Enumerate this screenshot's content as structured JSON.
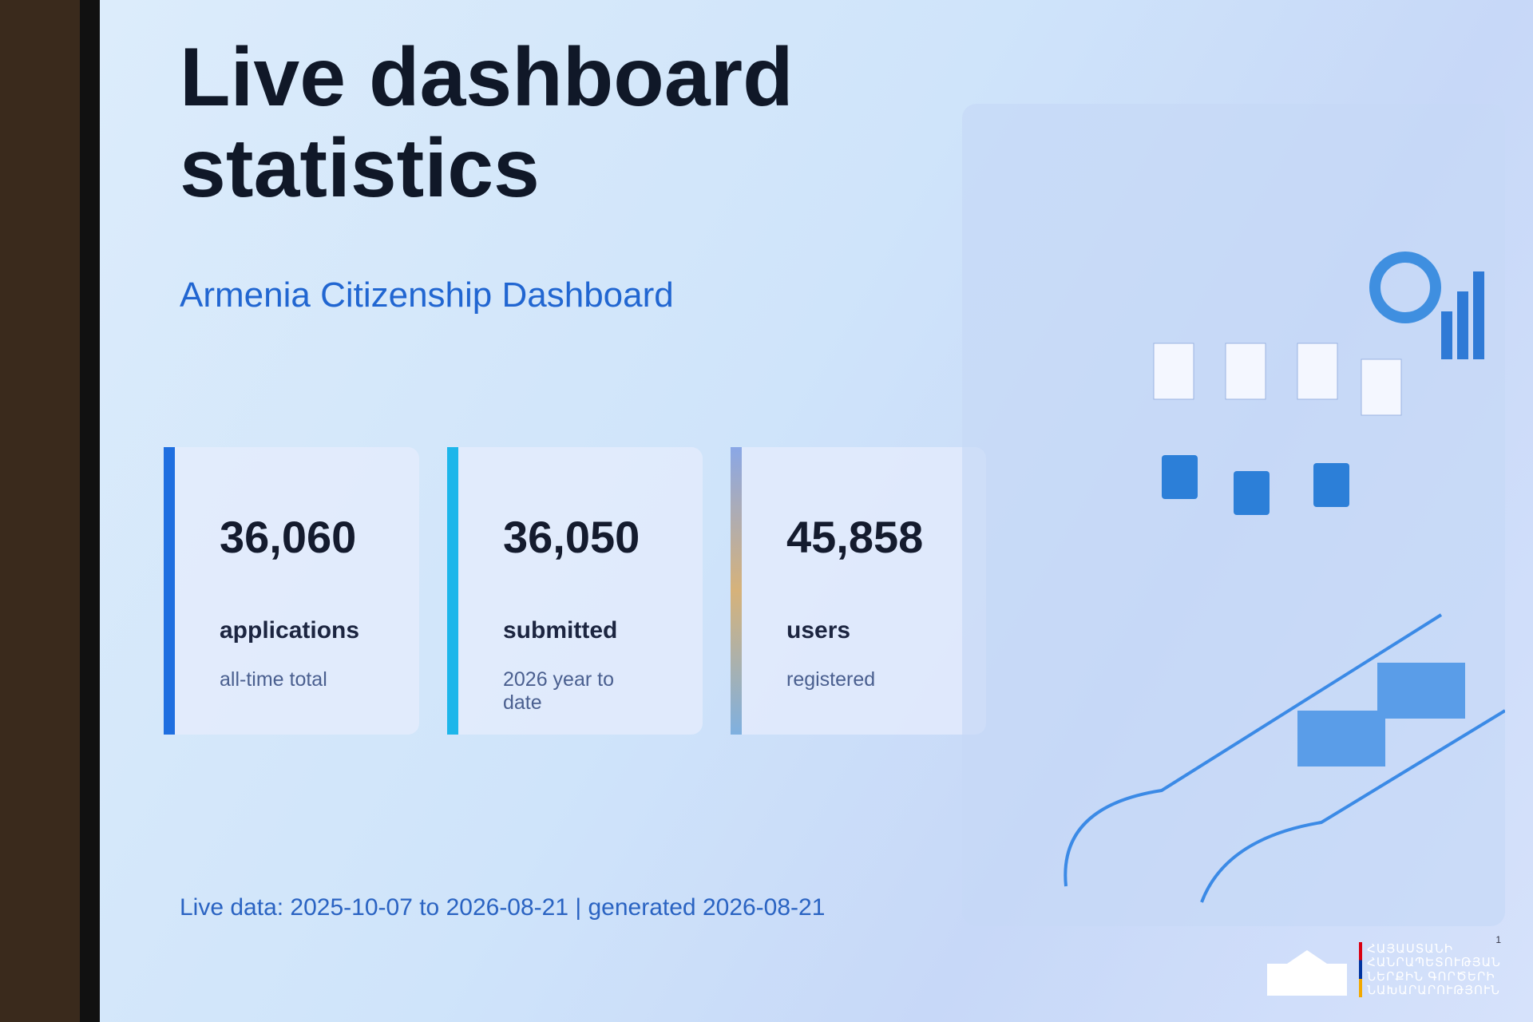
{
  "header": {
    "title": "Live dashboard statistics",
    "subtitle": "Armenia Citizenship Dashboard"
  },
  "cards": [
    {
      "value": "36,060",
      "label": "applications",
      "note": "all-time total"
    },
    {
      "value": "36,050",
      "label": "submitted",
      "note": "2026 year to date"
    },
    {
      "value": "45,858",
      "label": "users",
      "note": "registered"
    }
  ],
  "footer": {
    "text": "Live data: 2025-10-07 to 2026-08-21 | generated 2026-08-21",
    "page": "1"
  },
  "logo": {
    "lines": [
      "ՀԱՅԱՍՏԱՆԻ",
      "ՀԱՆՐԱՊԵՏՈՒԹՅԱՆ",
      "ՆԵՐՔԻՆ ԳՈՐԾԵՐԻ",
      "ՆԱԽԱՐԱՐՈՒԹՅՈՒՆ"
    ]
  }
}
